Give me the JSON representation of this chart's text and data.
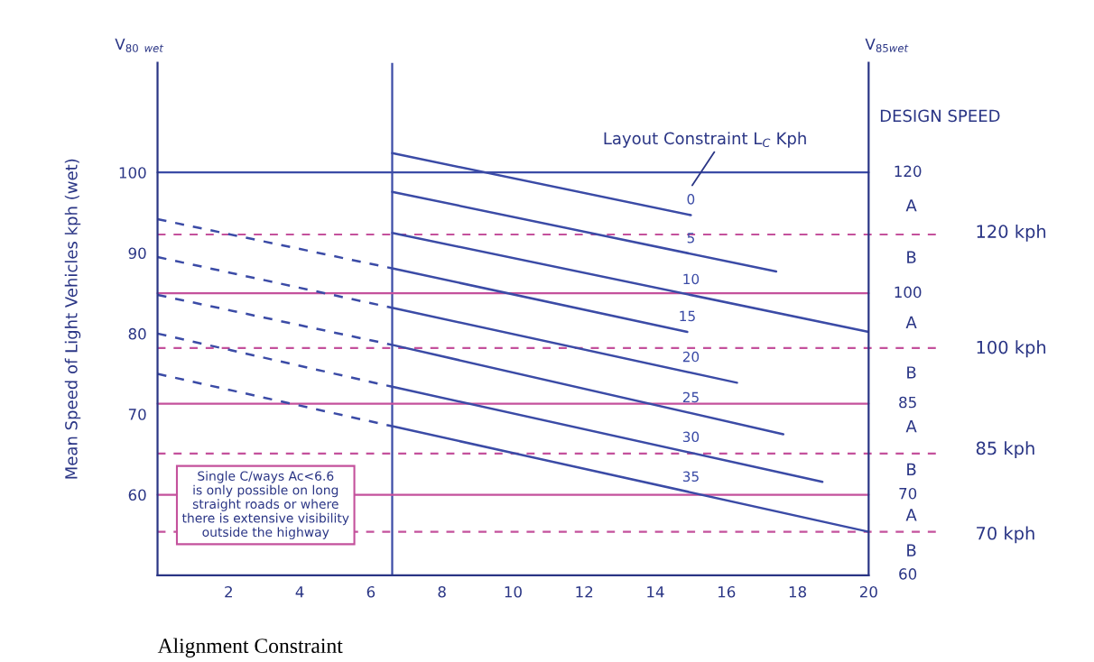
{
  "chart_data": {
    "type": "line",
    "xlabel": "Alignment Constraint",
    "ylabel": "Mean Speed of Light Vehicles kph (wet)",
    "xlim": [
      0,
      20
    ],
    "xticks": [
      2,
      4,
      6,
      8,
      10,
      12,
      14,
      16,
      18,
      20
    ],
    "ylim": [
      50,
      113.6
    ],
    "yticks": [
      60,
      70,
      80,
      90,
      100
    ],
    "marker": "none",
    "grid": false,
    "legend": false,
    "series": [
      {
        "name": "0",
        "color": "#3b4ba6",
        "x": [
          6.6,
          15.0
        ],
        "values": [
          102.4,
          94.7
        ]
      },
      {
        "name": "5",
        "color": "#3b4ba6",
        "x": [
          6.6,
          17.4
        ],
        "values": [
          97.6,
          87.7
        ]
      },
      {
        "name": "10",
        "color": "#3b4ba6",
        "x": [
          6.6,
          20
        ],
        "values": [
          92.5,
          80.2
        ]
      },
      {
        "name": "15",
        "color": "#3b4ba6",
        "x": [
          6.6,
          14.9
        ],
        "values": [
          88.1,
          80.2
        ]
      },
      {
        "name": "20",
        "color": "#3b4ba6",
        "x": [
          6.6,
          16.3
        ],
        "values": [
          83.2,
          73.9
        ]
      },
      {
        "name": "25",
        "color": "#3b4ba6",
        "x": [
          6.6,
          17.6
        ],
        "values": [
          78.6,
          67.5
        ]
      },
      {
        "name": "30",
        "color": "#3b4ba6",
        "x": [
          6.6,
          18.7
        ],
        "values": [
          73.4,
          61.6
        ]
      },
      {
        "name": "35",
        "color": "#3b4ba6",
        "x": [
          6.6,
          20
        ],
        "values": [
          68.5,
          55.4
        ]
      },
      {
        "color": "#3b4ba6",
        "line_style": "dashed",
        "x": [
          0,
          6.6
        ],
        "values": [
          94.2,
          88.1
        ]
      },
      {
        "color": "#3b4ba6",
        "line_style": "dashed",
        "x": [
          0,
          6.6
        ],
        "values": [
          89.5,
          83.2
        ]
      },
      {
        "color": "#3b4ba6",
        "line_style": "dashed",
        "x": [
          0,
          6.6
        ],
        "values": [
          84.8,
          78.6
        ]
      },
      {
        "color": "#3b4ba6",
        "line_style": "dashed",
        "x": [
          0,
          6.6
        ],
        "values": [
          80,
          73.4
        ]
      },
      {
        "color": "#3b4ba6",
        "line_style": "dashed",
        "x": [
          0,
          6.6
        ],
        "values": [
          75,
          68.5
        ]
      }
    ],
    "ref_lines": [
      {
        "axis": "x",
        "value": 6.6,
        "color": "#3b4ba6",
        "line_style": "solid"
      },
      {
        "axis": "y",
        "value": 100,
        "color": "#3b4ba6",
        "line_style": "solid"
      },
      {
        "axis": "y",
        "value": 92.3,
        "color": "#c4519c",
        "line_style": "dashed"
      },
      {
        "axis": "y",
        "value": 85,
        "color": "#c4519c",
        "line_style": "solid"
      },
      {
        "axis": "y",
        "value": 78.2,
        "color": "#c4519c",
        "line_style": "dashed"
      },
      {
        "axis": "y",
        "value": 71.3,
        "color": "#c4519c",
        "line_style": "solid"
      },
      {
        "axis": "y",
        "value": 65.1,
        "color": "#c4519c",
        "line_style": "dashed"
      },
      {
        "axis": "y",
        "value": 60,
        "color": "#c4519c",
        "line_style": "solid"
      },
      {
        "axis": "y",
        "value": 55.4,
        "color": "#c4519c",
        "line_style": "dashed"
      }
    ],
    "annotations": [
      "V$_{80}$ $_{wet}$",
      "V$_{85wet}$",
      "DESIGN SPEED",
      "Single C/ways Ac<6.6\nis only possible on long\nstraight roads or where\nthere is extensive visibility\noutside the highway",
      "Layout Constraint L$_{C}$ Kph",
      "120",
      "A",
      "B",
      "100",
      "A",
      "B",
      "85",
      "A",
      "B",
      "70",
      "A",
      "B",
      "60",
      "120 kph",
      "100 kph",
      "85 kph",
      "70 kph"
    ]
  }
}
